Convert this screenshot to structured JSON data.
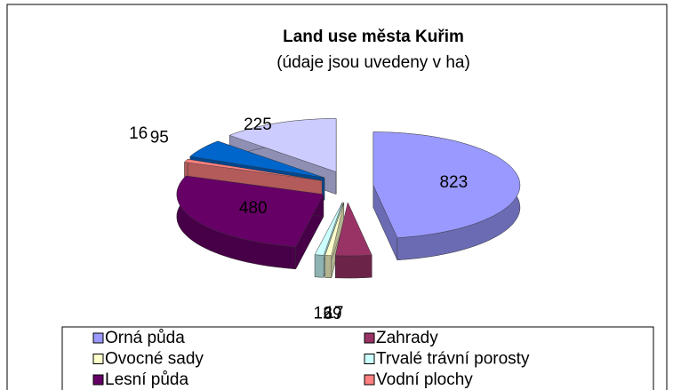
{
  "chart_data": {
    "type": "pie3d",
    "title": "Land use města Kuřim",
    "subtitle": "(údaje jsou uvedeny v ha)",
    "categories": [
      "Orná půda",
      "Zahrady",
      "Ovocné sady",
      "Trvalé trávní porosty",
      "Lesní půda",
      "Vodní plochy",
      null,
      null
    ],
    "values": [
      823,
      69,
      12,
      17,
      480,
      16,
      95,
      225
    ],
    "colors": [
      "#9999ff",
      "#993366",
      "#ffffcc",
      "#ccffff",
      "#660066",
      "#ff8080",
      "#0066cc",
      "#ccccff"
    ],
    "legend": "bottom"
  }
}
